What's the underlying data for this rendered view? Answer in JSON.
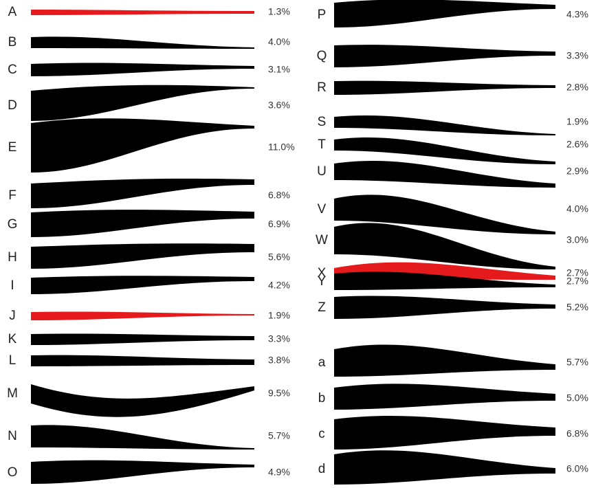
{
  "items": [
    {
      "label": "A",
      "percent": "1.3%",
      "color": "#e41a1c"
    },
    {
      "label": "B",
      "percent": "4.0%",
      "color": "#000000"
    },
    {
      "label": "C",
      "percent": "3.1%",
      "color": "#000000"
    },
    {
      "label": "D",
      "percent": "3.6%",
      "color": "#000000"
    },
    {
      "label": "E",
      "percent": "11.0%",
      "color": "#000000"
    },
    {
      "label": "F",
      "percent": "6.8%",
      "color": "#000000"
    },
    {
      "label": "G",
      "percent": "6.9%",
      "color": "#000000"
    },
    {
      "label": "H",
      "percent": "5.6%",
      "color": "#000000"
    },
    {
      "label": "I",
      "percent": "4.2%",
      "color": "#000000"
    },
    {
      "label": "J",
      "percent": "1.9%",
      "color": "#e41a1c"
    },
    {
      "label": "K",
      "percent": "3.3%",
      "color": "#000000"
    },
    {
      "label": "L",
      "percent": "3.8%",
      "color": "#000000"
    },
    {
      "label": "M",
      "percent": "9.5%",
      "color": "#000000"
    },
    {
      "label": "N",
      "percent": "5.7%",
      "color": "#000000"
    },
    {
      "label": "O",
      "percent": "4.9%",
      "color": "#000000"
    },
    {
      "label": "P",
      "percent": "4.3%",
      "color": "#000000"
    },
    {
      "label": "Q",
      "percent": "3.3%",
      "color": "#000000"
    },
    {
      "label": "R",
      "percent": "2.8%",
      "color": "#000000"
    },
    {
      "label": "S",
      "percent": "1.9%",
      "color": "#000000"
    },
    {
      "label": "T",
      "percent": "2.6%",
      "color": "#000000"
    },
    {
      "label": "U",
      "percent": "2.9%",
      "color": "#000000"
    },
    {
      "label": "V",
      "percent": "4.0%",
      "color": "#000000"
    },
    {
      "label": "W",
      "percent": "3.0%",
      "color": "#000000"
    },
    {
      "label": "X",
      "percent": "2.7%",
      "color": "#e41a1c"
    },
    {
      "label": "Y",
      "percent": "2.7%",
      "color": "#000000"
    },
    {
      "label": "Z",
      "percent": "5.2%",
      "color": "#000000"
    },
    {
      "label": "a",
      "percent": "5.7%",
      "color": "#000000"
    },
    {
      "label": "b",
      "percent": "5.0%",
      "color": "#000000"
    },
    {
      "label": "c",
      "percent": "6.8%",
      "color": "#000000"
    },
    {
      "label": "d",
      "percent": "6.0%",
      "color": "#000000"
    }
  ]
}
